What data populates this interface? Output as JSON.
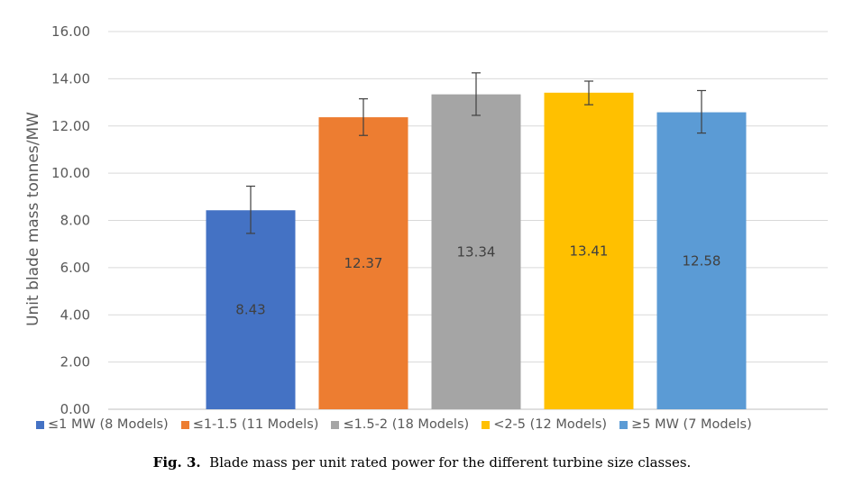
{
  "chart_data": {
    "type": "bar",
    "ylabel": "Unit blade mass tonnes/MW",
    "ylim": [
      0,
      16
    ],
    "ytick_step": 2,
    "ytick_decimals": 2,
    "grid": true,
    "legend_position": "bottom",
    "categories": [
      "≤1 MW (8 Models)",
      "≤1-1.5 (11 Models)",
      "≤1.5-2 (18 Models)",
      "<2-5 (12 Models)",
      "≥5 MW (7 Models)"
    ],
    "values": [
      8.43,
      12.37,
      13.34,
      13.41,
      12.58
    ],
    "data_labels": [
      "8.43",
      "12.37",
      "13.34",
      "13.41",
      "12.58"
    ],
    "error_low": [
      7.45,
      11.6,
      12.45,
      12.9,
      11.7
    ],
    "error_high": [
      9.45,
      13.15,
      14.25,
      13.9,
      13.5
    ],
    "colors": [
      "#4472C4",
      "#ED7D31",
      "#A5A5A5",
      "#FFC000",
      "#5B9BD5"
    ]
  },
  "caption": {
    "label": "Fig. 3.",
    "text": "Blade mass per unit rated power for the different turbine size classes."
  }
}
